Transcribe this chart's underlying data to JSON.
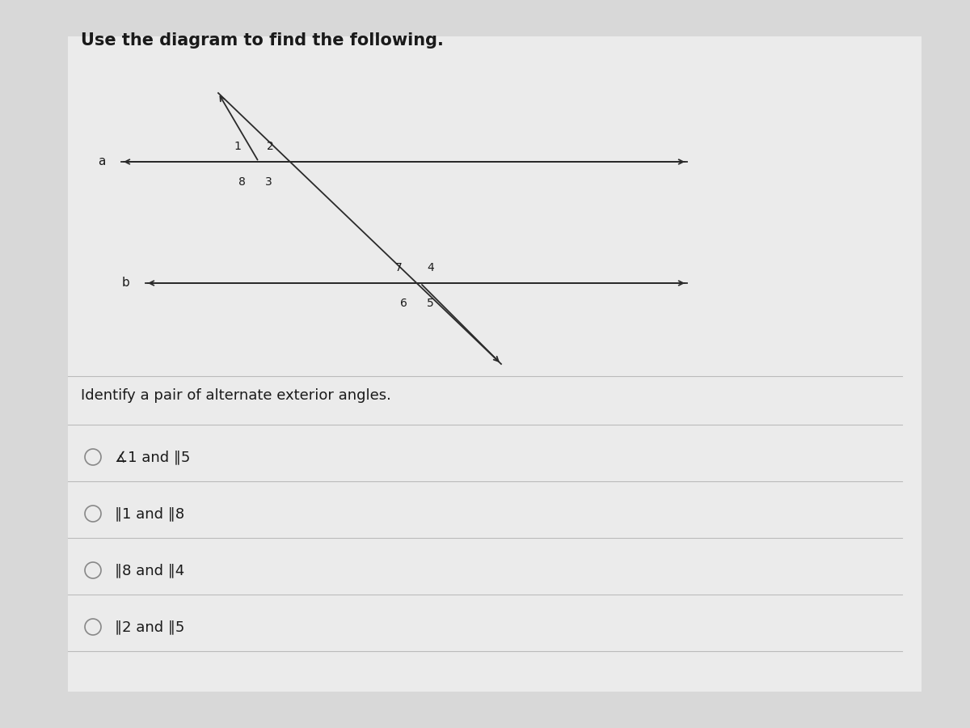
{
  "title": "Use the diagram to find the following.",
  "title_fontsize": 15,
  "bg_color": "#d8d8d8",
  "card_color": "#ebebeb",
  "question": "Identify a pair of alternate exterior angles.",
  "question_fontsize": 13,
  "options": [
    "∡1 and ∥5",
    "∥1 and ∥8",
    "∥8 and ∥4",
    "∥2 and ∥5"
  ],
  "option_fontsize": 13,
  "divider_color": "#bbbbbb",
  "line_color": "#2a2a2a",
  "text_color": "#1a1a1a",
  "circle_color": "#888888"
}
